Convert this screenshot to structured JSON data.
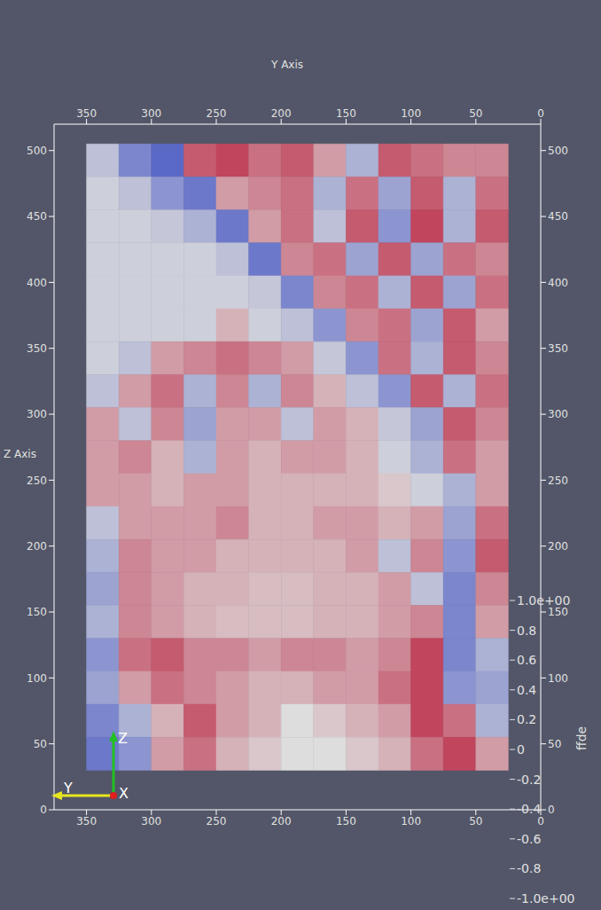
{
  "chart_data": {
    "type": "heatmap",
    "x_label": "Y Axis",
    "y_label": "Z Axis",
    "xlim": [
      375,
      0
    ],
    "xticks": [
      0,
      50,
      100,
      150,
      200,
      250,
      300,
      350
    ],
    "ylim": [
      0,
      520
    ],
    "yticks": [
      0,
      50,
      100,
      150,
      200,
      250,
      300,
      350,
      400,
      450,
      500
    ],
    "x_edges": [
      350,
      325,
      300,
      275,
      250,
      225,
      200,
      175,
      150,
      125,
      100,
      75,
      50,
      25
    ],
    "y_edges": [
      505,
      480,
      455,
      430,
      405,
      380,
      355,
      330,
      305,
      280,
      255,
      230,
      205,
      180,
      155,
      130,
      105,
      80,
      55,
      30
    ],
    "cells": [
      [
        -0.2,
        -0.6,
        -0.8,
        0.6,
        0.7,
        0.5,
        0.6,
        0.3,
        -0.3,
        0.6,
        0.5,
        0.4,
        0.4
      ],
      [
        -0.1,
        -0.2,
        -0.5,
        -0.7,
        0.3,
        0.4,
        0.5,
        -0.3,
        0.5,
        -0.4,
        0.6,
        -0.3,
        0.5
      ],
      [
        -0.1,
        -0.1,
        -0.15,
        -0.3,
        -0.7,
        0.3,
        0.5,
        -0.2,
        0.6,
        -0.5,
        0.7,
        -0.3,
        0.6
      ],
      [
        -0.1,
        -0.1,
        -0.1,
        -0.1,
        -0.2,
        -0.7,
        0.4,
        0.5,
        -0.4,
        0.6,
        -0.4,
        0.5,
        0.4
      ],
      [
        -0.1,
        -0.1,
        -0.1,
        -0.1,
        -0.1,
        -0.15,
        -0.6,
        0.4,
        0.5,
        -0.3,
        0.6,
        -0.4,
        0.5
      ],
      [
        -0.1,
        -0.1,
        -0.1,
        -0.1,
        0.2,
        -0.1,
        -0.2,
        -0.5,
        0.4,
        0.5,
        -0.4,
        0.6,
        0.3
      ],
      [
        -0.1,
        -0.2,
        0.3,
        0.4,
        0.5,
        0.4,
        0.3,
        -0.15,
        -0.5,
        0.5,
        -0.3,
        0.6,
        0.4
      ],
      [
        -0.2,
        0.3,
        0.5,
        -0.3,
        0.4,
        -0.3,
        0.4,
        0.2,
        -0.2,
        -0.5,
        0.6,
        -0.3,
        0.5
      ],
      [
        0.3,
        -0.2,
        0.4,
        -0.4,
        0.3,
        0.3,
        -0.2,
        0.3,
        0.2,
        -0.15,
        -0.4,
        0.6,
        0.4
      ],
      [
        0.3,
        0.4,
        0.2,
        -0.3,
        0.3,
        0.2,
        0.3,
        0.3,
        0.2,
        -0.1,
        -0.3,
        0.5,
        0.3
      ],
      [
        0.3,
        0.3,
        0.2,
        0.3,
        0.3,
        0.2,
        0.2,
        0.2,
        0.2,
        0.1,
        -0.1,
        -0.3,
        0.3
      ],
      [
        -0.2,
        0.3,
        0.3,
        0.3,
        0.4,
        0.2,
        0.2,
        0.3,
        0.3,
        0.2,
        0.3,
        -0.4,
        0.5
      ],
      [
        -0.3,
        0.4,
        0.3,
        0.3,
        0.2,
        0.2,
        0.2,
        0.2,
        0.3,
        -0.2,
        0.4,
        -0.5,
        0.6
      ],
      [
        -0.4,
        0.4,
        0.3,
        0.2,
        0.2,
        0.15,
        0.15,
        0.2,
        0.2,
        0.3,
        -0.2,
        -0.6,
        0.4
      ],
      [
        -0.3,
        0.4,
        0.3,
        0.2,
        0.15,
        0.15,
        0.15,
        0.2,
        0.2,
        0.3,
        0.4,
        -0.6,
        0.3
      ],
      [
        -0.5,
        0.5,
        0.6,
        0.4,
        0.4,
        0.3,
        0.4,
        0.4,
        0.3,
        0.4,
        0.7,
        -0.6,
        -0.3
      ],
      [
        -0.4,
        0.3,
        0.5,
        0.4,
        0.3,
        0.2,
        0.2,
        0.3,
        0.3,
        0.5,
        0.7,
        -0.5,
        -0.4
      ],
      [
        -0.6,
        -0.3,
        0.2,
        0.6,
        0.3,
        0.2,
        0.0,
        0.1,
        0.2,
        0.3,
        0.7,
        0.5,
        -0.3
      ],
      [
        -0.7,
        -0.5,
        0.3,
        0.5,
        0.2,
        0.1,
        0.0,
        0.0,
        0.1,
        0.2,
        0.5,
        0.7,
        0.3
      ]
    ],
    "colorbar": {
      "label": "ffde",
      "range": [
        -1,
        1
      ],
      "ticks": [
        {
          "value": 1,
          "label": "1.0e+00"
        },
        0.8,
        0.6,
        0.4,
        0.2,
        0,
        -0.2,
        -0.4,
        -0.6,
        -0.8,
        {
          "value": -1,
          "label": "-1.0e+00"
        }
      ]
    },
    "orientation_axes": [
      "X",
      "Y",
      "Z"
    ]
  }
}
